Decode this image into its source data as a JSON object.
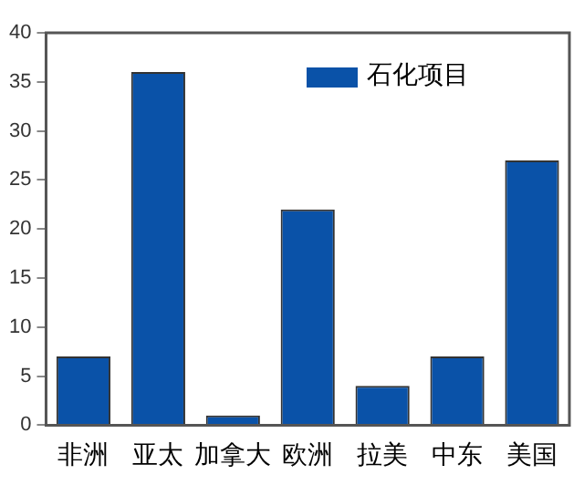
{
  "chart_data": {
    "type": "bar",
    "categories": [
      "非洲",
      "亚太",
      "加拿大",
      "欧洲",
      "拉美",
      "中东",
      "美国"
    ],
    "series": [
      {
        "name": "石化项目",
        "color": "#0a52a8",
        "values": [
          7,
          36,
          1,
          22,
          4,
          7,
          27
        ]
      }
    ],
    "ylim": [
      0,
      40
    ],
    "yticks": [
      0,
      5,
      10,
      15,
      20,
      25,
      30,
      35,
      40
    ],
    "grid": false,
    "legend": "top right"
  }
}
